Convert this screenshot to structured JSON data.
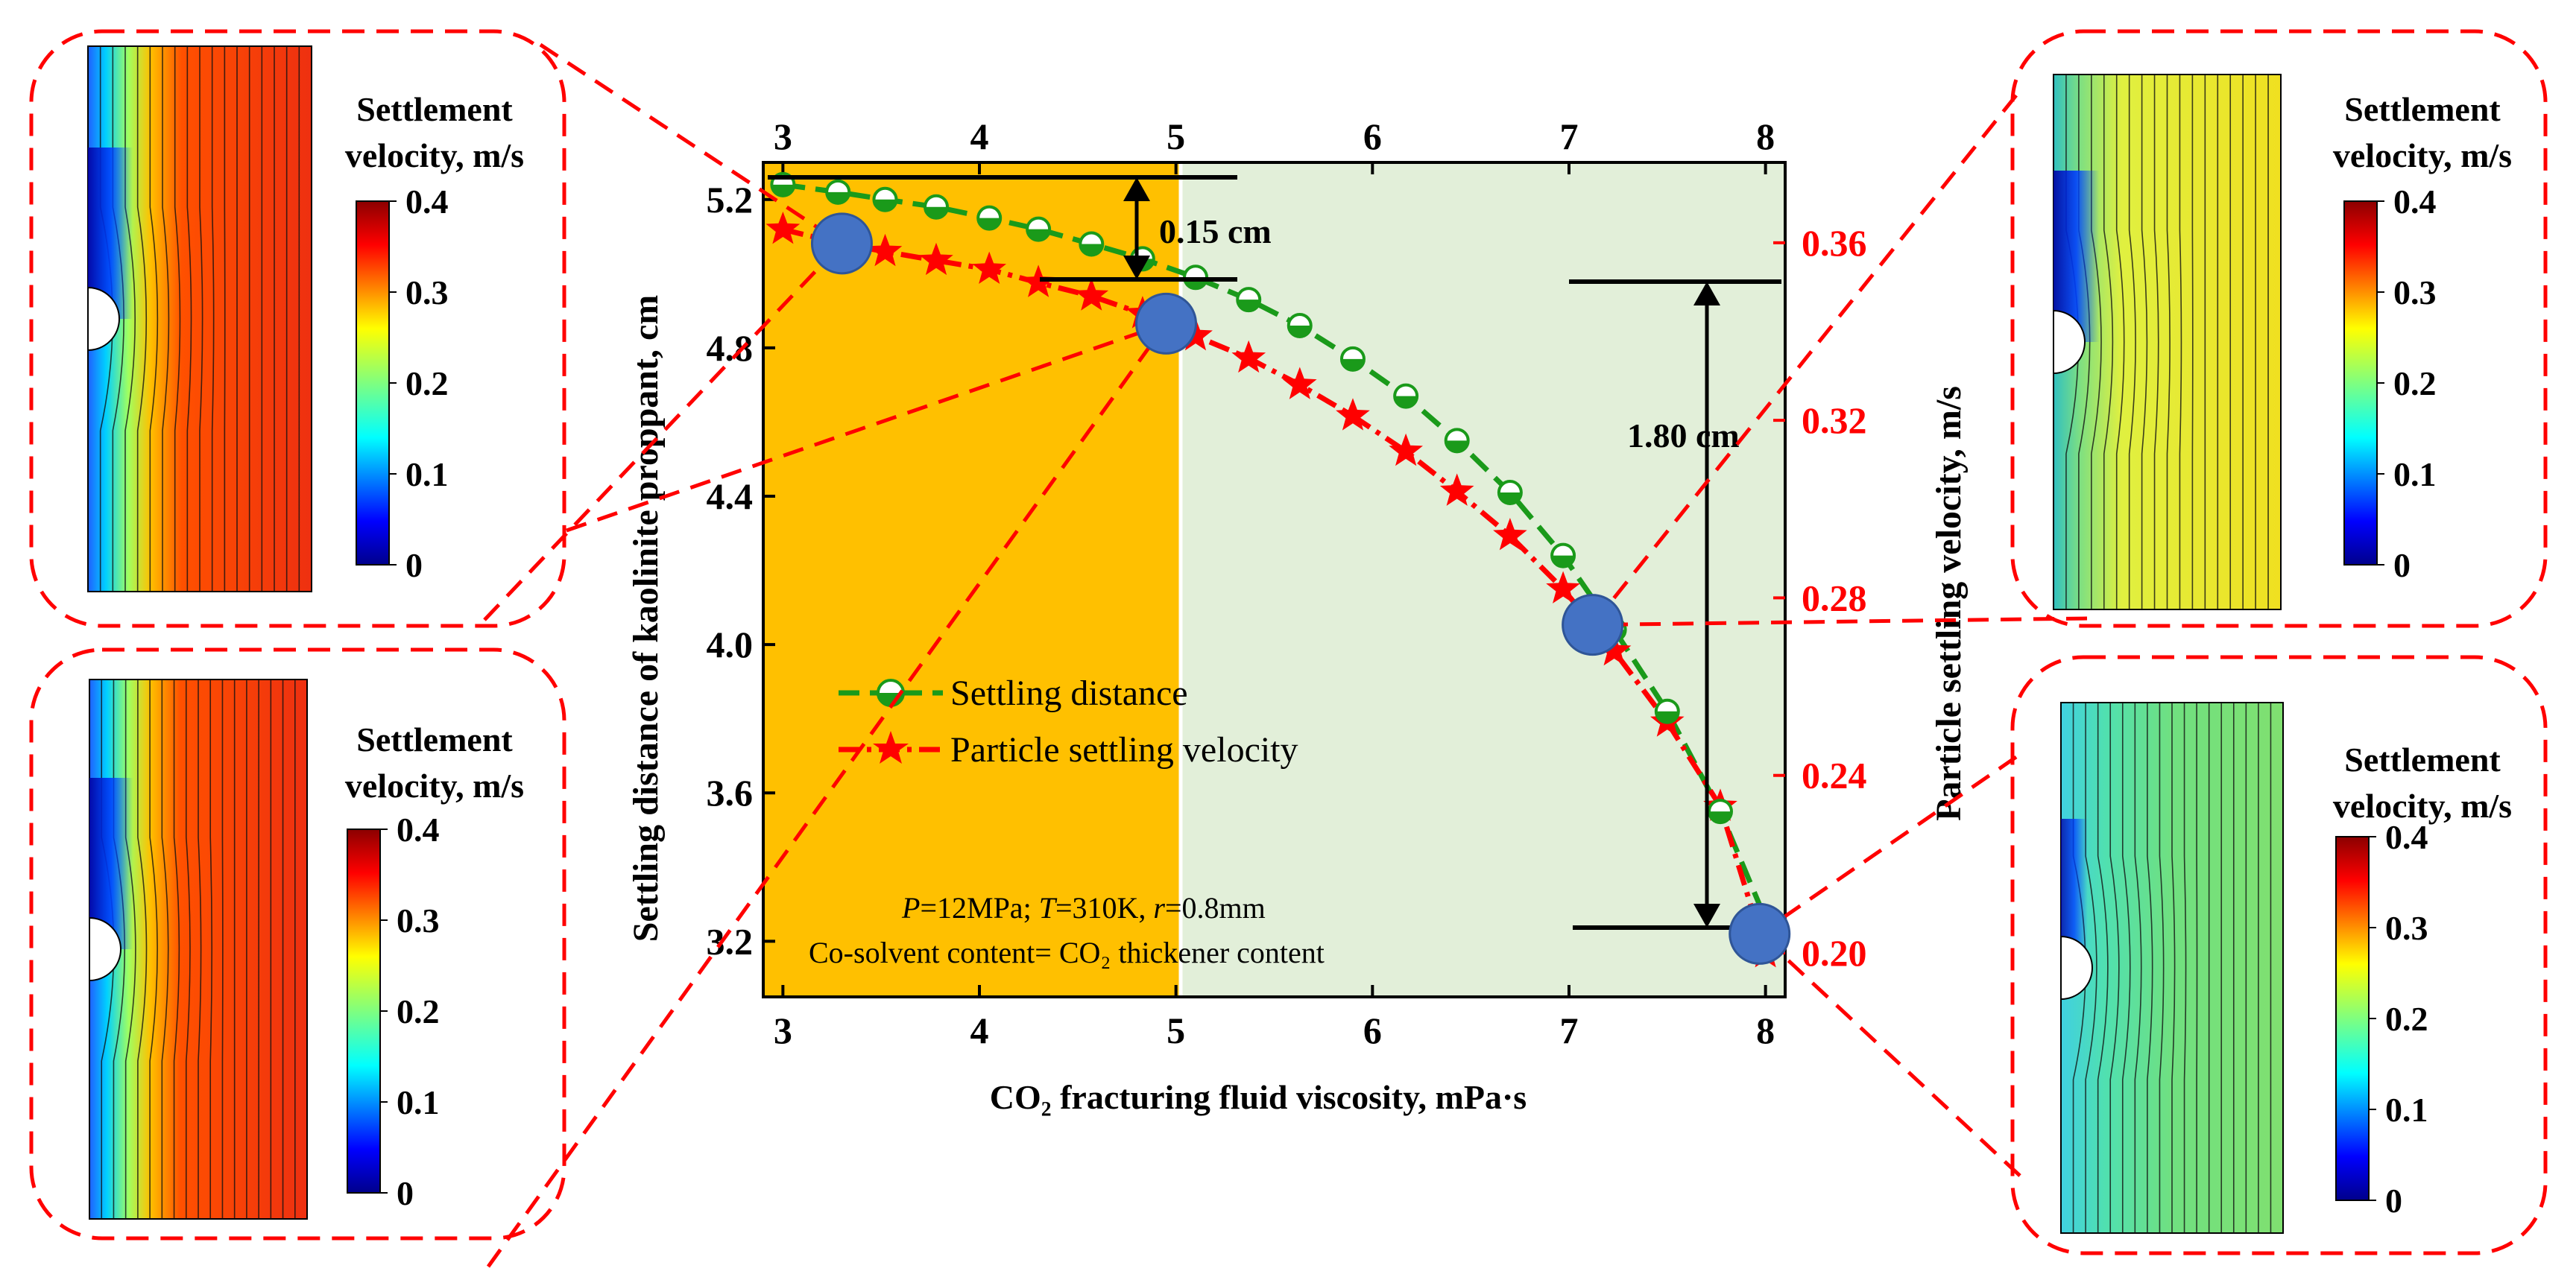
{
  "chart_data": {
    "type": "line",
    "xlabel": "CO₂ fracturing fluid viscosity, mPa·s",
    "ylabel_left": "Settling distance of kaolinite proppant, cm",
    "ylabel_right": "Particle settling velocity, m/s",
    "xlim": [
      2.9,
      8.1
    ],
    "ylim_left": [
      3.05,
      5.3
    ],
    "ylim_right": [
      0.1901,
      0.3781
    ],
    "x_ticks": [
      3,
      4,
      5,
      6,
      7,
      8
    ],
    "y_left_ticks": [
      3.2,
      3.6,
      4.0,
      4.4,
      4.8,
      5.2
    ],
    "y_right_ticks": [
      0.2,
      0.24,
      0.28,
      0.32,
      0.36
    ],
    "series": [
      {
        "name": "Settling distance",
        "axis": "left",
        "color": "#1a9a1a",
        "x": [
          3.0,
          3.28,
          3.52,
          3.78,
          4.05,
          4.3,
          4.57,
          4.83,
          5.1,
          5.37,
          5.63,
          5.9,
          6.17,
          6.43,
          6.7,
          6.97,
          7.23,
          7.5,
          7.77,
          8.0
        ],
        "values": [
          5.24,
          5.22,
          5.2,
          5.18,
          5.15,
          5.12,
          5.08,
          5.04,
          4.99,
          4.93,
          4.86,
          4.77,
          4.67,
          4.55,
          4.41,
          4.24,
          4.04,
          3.82,
          3.55,
          3.26
        ]
      },
      {
        "name": "Particle settling velocity",
        "axis": "right",
        "color": "#ff0000",
        "x": [
          3.0,
          3.28,
          3.52,
          3.78,
          4.05,
          4.3,
          4.57,
          4.83,
          5.1,
          5.37,
          5.63,
          5.9,
          6.17,
          6.43,
          6.7,
          6.97,
          7.23,
          7.5,
          7.77,
          8.0
        ],
        "values": [
          0.363,
          0.36,
          0.358,
          0.356,
          0.354,
          0.351,
          0.348,
          0.344,
          0.339,
          0.334,
          0.328,
          0.321,
          0.313,
          0.304,
          0.294,
          0.282,
          0.268,
          0.252,
          0.233,
          0.2
        ]
      }
    ],
    "annotations": {
      "delta1": "0.15 cm",
      "delta2": "1.80 cm",
      "condition_line1": "P=12MPa; T=310K, r=0.8mm",
      "condition_line2": "Co-solvent content= CO₂ thickener content"
    },
    "highlight_points_x": [
      3.3,
      4.95,
      7.12,
      7.97
    ],
    "shaded_regions": [
      {
        "from": 2.9,
        "to": 5.0,
        "color": "#ffc000"
      },
      {
        "from": 5.0,
        "to": 8.1,
        "color": "#e2efd9"
      }
    ],
    "legend_position": "center-left"
  },
  "insets": [
    {
      "title_line1": "Settlement",
      "title_line2": "velocity, m/s",
      "field": "hot"
    },
    {
      "title_line1": "Settlement",
      "title_line2": "velocity, m/s",
      "field": "hot"
    },
    {
      "title_line1": "Settlement",
      "title_line2": "velocity, m/s",
      "field": "yellow"
    },
    {
      "title_line1": "Settlement",
      "title_line2": "velocity, m/s",
      "field": "green"
    }
  ],
  "colorbar_ticks": [
    "0.4",
    "0.3",
    "0.2",
    "0.1",
    "0"
  ]
}
